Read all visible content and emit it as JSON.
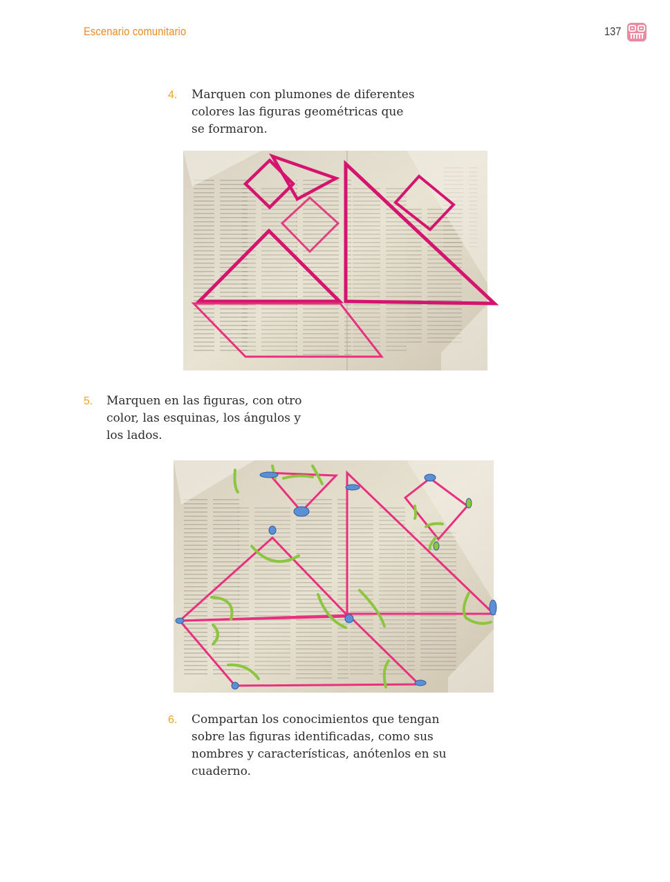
{
  "header": {
    "section_title": "Escenario comunitario",
    "page_number": "137",
    "logo_icon": "indigenous-glyph-icon",
    "logo_color": "#e88aa0"
  },
  "steps": [
    {
      "number": "4.",
      "lines": [
        "Marquen con plumones de diferentes",
        "colores las figuras geométricas que",
        "se formaron."
      ]
    },
    {
      "number": "5.",
      "lines": [
        "Marquen en las figuras, con otro",
        "color, las esquinas, los ángulos y",
        "los lados."
      ]
    },
    {
      "number": "6.",
      "lines": [
        "Compartan los conocimientos que tengan",
        "sobre las figuras identificadas, como sus",
        "nombres y características, anótenlos en su",
        "cuaderno."
      ]
    }
  ],
  "photos": [
    {
      "subject": "newspaper-tangram-shapes-outlined",
      "outline_color": "#d4146e"
    },
    {
      "subject": "newspaper-tangram-corners-angles-sides",
      "outline_color": "#e8307e",
      "corner_color": "#5b8fd6",
      "angle_color": "#8cc63f"
    }
  ]
}
